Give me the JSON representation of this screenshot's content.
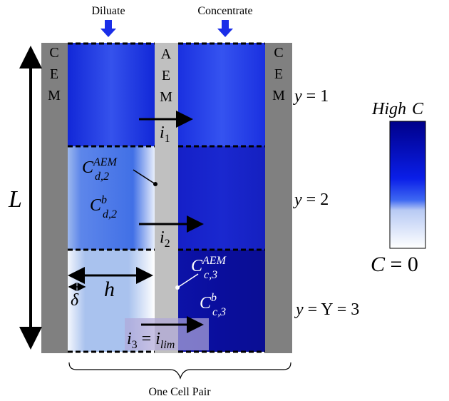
{
  "top_labels": {
    "diluate": "Diluate",
    "concentrate": "Concentrate"
  },
  "membranes": {
    "left": [
      "C",
      "E",
      "M"
    ],
    "middle": [
      "A",
      "E",
      "M"
    ],
    "right": [
      "C",
      "E",
      "M"
    ]
  },
  "rows": [
    {
      "base": "y",
      "rest": " = 1"
    },
    {
      "base": "y",
      "rest": " = 2"
    },
    {
      "base": "y",
      "rest": " = Y = 3"
    }
  ],
  "length": "L",
  "width": "h",
  "boundary": "δ",
  "currents": [
    {
      "base": "i",
      "sub": "1"
    },
    {
      "base": "i",
      "sub": "2"
    },
    {
      "base": "i",
      "sub": "3",
      "eq": " = ",
      "base2": "i",
      "sub2": "lim"
    }
  ],
  "concentrations": [
    {
      "base": "C",
      "sup": "AEM",
      "sub": "d,2"
    },
    {
      "base": "C",
      "sup": "b",
      "sub": "d,2"
    },
    {
      "base": "C",
      "sup": "AEM",
      "sub": "c,3"
    },
    {
      "base": "C",
      "sup": "b",
      "sub": "c,3"
    }
  ],
  "colorbar": {
    "top": {
      "a": "High",
      "b": "C"
    },
    "bottom": {
      "a": "C",
      "b": " = 0"
    }
  },
  "footer": "One Cell Pair"
}
